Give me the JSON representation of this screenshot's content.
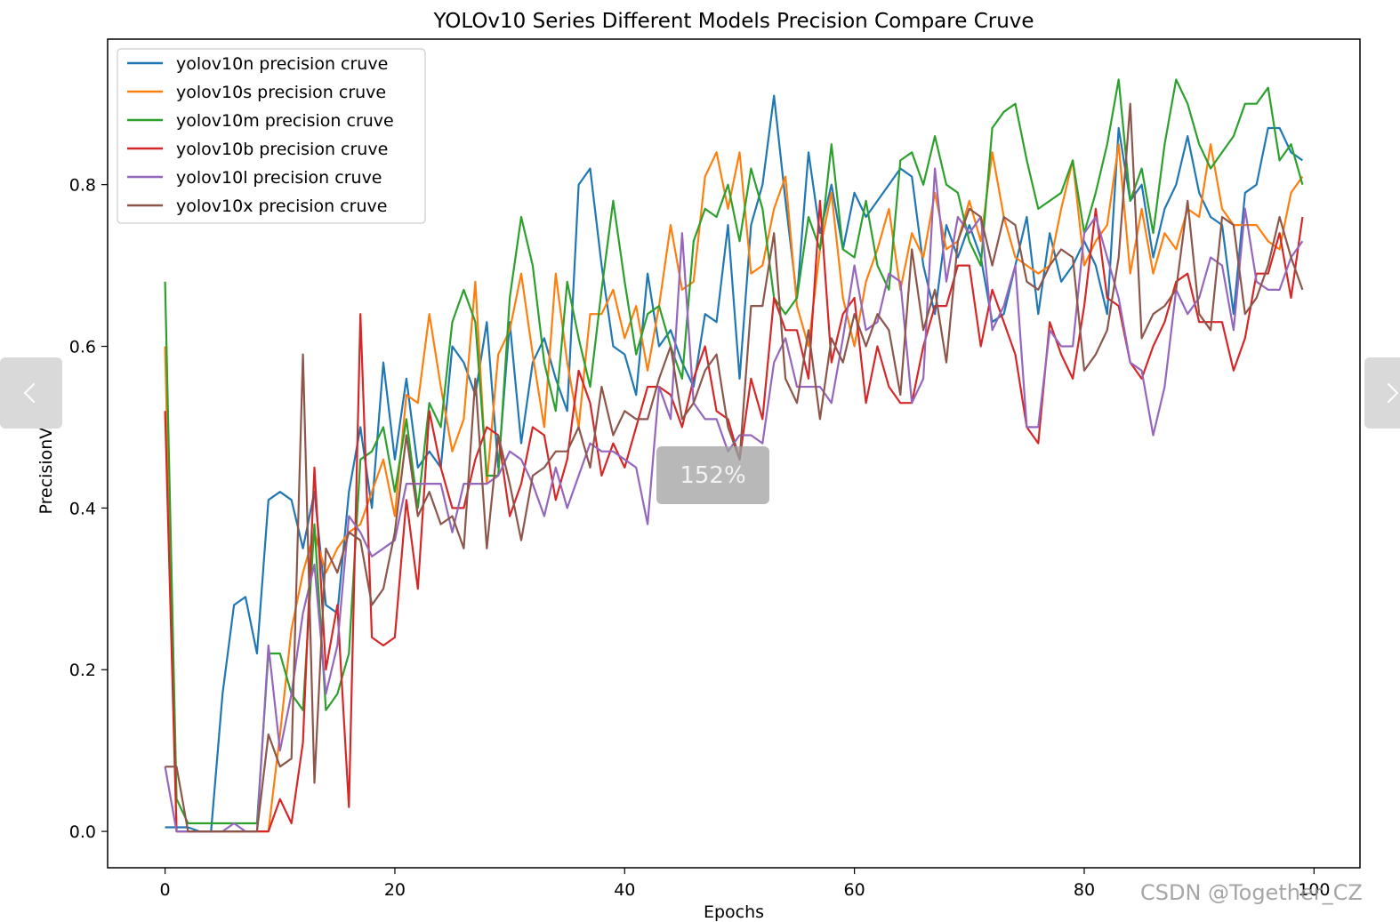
{
  "chart_data": {
    "type": "line",
    "title": "YOLOv10 Series Different Models Precision Compare Cruve",
    "xlabel": "Epochs",
    "ylabel": "PrecisionValue",
    "xlim": [
      -5,
      104
    ],
    "ylim": [
      -0.045,
      0.98
    ],
    "xticks": [
      0,
      20,
      40,
      60,
      80,
      100
    ],
    "yticks": [
      0.0,
      0.2,
      0.4,
      0.6,
      0.8
    ],
    "xtick_labels": [
      "0",
      "20",
      "40",
      "60",
      "80",
      "100"
    ],
    "ytick_labels": [
      "0.0",
      "0.2",
      "0.4",
      "0.6",
      "0.8"
    ],
    "grid": false,
    "legend_position": "top-left",
    "series": [
      {
        "name": "yolov10n precision cruve",
        "color": "#1f77b4",
        "values": [
          0.005,
          0.005,
          0.005,
          0.0,
          0.0,
          0.17,
          0.28,
          0.29,
          0.22,
          0.41,
          0.42,
          0.41,
          0.35,
          0.42,
          0.28,
          0.27,
          0.42,
          0.5,
          0.4,
          0.58,
          0.46,
          0.56,
          0.45,
          0.47,
          0.45,
          0.6,
          0.58,
          0.54,
          0.63,
          0.45,
          0.63,
          0.48,
          0.58,
          0.61,
          0.56,
          0.52,
          0.8,
          0.82,
          0.7,
          0.6,
          0.59,
          0.54,
          0.69,
          0.6,
          0.62,
          0.58,
          0.55,
          0.64,
          0.63,
          0.75,
          0.56,
          0.75,
          0.8,
          0.91,
          0.78,
          0.66,
          0.84,
          0.74,
          0.8,
          0.72,
          0.79,
          0.76,
          0.78,
          0.8,
          0.82,
          0.81,
          0.7,
          0.64,
          0.75,
          0.71,
          0.75,
          0.71,
          0.63,
          0.64,
          0.7,
          0.76,
          0.64,
          0.74,
          0.68,
          0.7,
          0.73,
          0.7,
          0.64,
          0.87,
          0.78,
          0.8,
          0.71,
          0.77,
          0.8,
          0.86,
          0.79,
          0.76,
          0.75,
          0.64,
          0.79,
          0.8,
          0.87,
          0.87,
          0.84,
          0.83
        ]
      },
      {
        "name": "yolov10s precision cruve",
        "color": "#ff7f0e",
        "values": [
          0.6,
          0.0,
          0.0,
          0.0,
          0.0,
          0.0,
          0.0,
          0.0,
          0.0,
          0.0,
          0.12,
          0.25,
          0.32,
          0.37,
          0.32,
          0.35,
          0.37,
          0.38,
          0.42,
          0.46,
          0.39,
          0.54,
          0.53,
          0.64,
          0.55,
          0.47,
          0.51,
          0.68,
          0.43,
          0.59,
          0.62,
          0.69,
          0.59,
          0.5,
          0.69,
          0.58,
          0.5,
          0.64,
          0.64,
          0.67,
          0.61,
          0.65,
          0.57,
          0.65,
          0.75,
          0.67,
          0.68,
          0.81,
          0.84,
          0.77,
          0.84,
          0.69,
          0.7,
          0.77,
          0.81,
          0.65,
          0.6,
          0.72,
          0.79,
          0.66,
          0.6,
          0.68,
          0.72,
          0.77,
          0.67,
          0.74,
          0.71,
          0.79,
          0.72,
          0.73,
          0.78,
          0.73,
          0.84,
          0.76,
          0.71,
          0.7,
          0.69,
          0.7,
          0.77,
          0.83,
          0.7,
          0.73,
          0.75,
          0.85,
          0.69,
          0.77,
          0.69,
          0.74,
          0.72,
          0.77,
          0.76,
          0.85,
          0.77,
          0.75,
          0.75,
          0.75,
          0.73,
          0.72,
          0.79,
          0.81
        ]
      },
      {
        "name": "yolov10m precision cruve",
        "color": "#2ca02c",
        "values": [
          0.68,
          0.04,
          0.01,
          0.01,
          0.01,
          0.01,
          0.01,
          0.01,
          0.01,
          0.22,
          0.22,
          0.17,
          0.15,
          0.38,
          0.15,
          0.17,
          0.22,
          0.46,
          0.47,
          0.5,
          0.42,
          0.51,
          0.4,
          0.53,
          0.5,
          0.63,
          0.67,
          0.63,
          0.44,
          0.44,
          0.66,
          0.76,
          0.7,
          0.58,
          0.52,
          0.68,
          0.61,
          0.55,
          0.67,
          0.78,
          0.68,
          0.59,
          0.64,
          0.65,
          0.6,
          0.56,
          0.73,
          0.77,
          0.76,
          0.8,
          0.73,
          0.82,
          0.77,
          0.66,
          0.64,
          0.66,
          0.76,
          0.72,
          0.85,
          0.72,
          0.71,
          0.78,
          0.7,
          0.67,
          0.83,
          0.84,
          0.8,
          0.86,
          0.8,
          0.79,
          0.73,
          0.7,
          0.87,
          0.89,
          0.9,
          0.83,
          0.77,
          0.78,
          0.79,
          0.83,
          0.74,
          0.79,
          0.85,
          0.93,
          0.78,
          0.82,
          0.74,
          0.85,
          0.93,
          0.9,
          0.85,
          0.82,
          0.84,
          0.86,
          0.9,
          0.9,
          0.92,
          0.83,
          0.85,
          0.8
        ]
      },
      {
        "name": "yolov10b precision cruve",
        "color": "#d62728",
        "values": [
          0.52,
          0.0,
          0.0,
          0.0,
          0.0,
          0.0,
          0.0,
          0.0,
          0.0,
          0.0,
          0.04,
          0.01,
          0.11,
          0.45,
          0.2,
          0.28,
          0.03,
          0.64,
          0.24,
          0.23,
          0.24,
          0.41,
          0.3,
          0.52,
          0.45,
          0.4,
          0.4,
          0.46,
          0.5,
          0.49,
          0.39,
          0.43,
          0.5,
          0.49,
          0.41,
          0.46,
          0.57,
          0.53,
          0.44,
          0.48,
          0.45,
          0.5,
          0.55,
          0.55,
          0.54,
          0.5,
          0.56,
          0.6,
          0.52,
          0.51,
          0.46,
          0.56,
          0.51,
          0.66,
          0.62,
          0.62,
          0.56,
          0.78,
          0.58,
          0.64,
          0.66,
          0.53,
          0.6,
          0.55,
          0.53,
          0.53,
          0.6,
          0.65,
          0.65,
          0.7,
          0.7,
          0.6,
          0.67,
          0.63,
          0.59,
          0.5,
          0.48,
          0.63,
          0.59,
          0.56,
          0.65,
          0.77,
          0.66,
          0.65,
          0.58,
          0.56,
          0.6,
          0.63,
          0.68,
          0.69,
          0.63,
          0.63,
          0.63,
          0.57,
          0.61,
          0.69,
          0.69,
          0.74,
          0.66,
          0.76
        ]
      },
      {
        "name": "yolov10l precision cruve",
        "color": "#9467bd",
        "values": [
          0.08,
          0.0,
          0.0,
          0.0,
          0.0,
          0.0,
          0.01,
          0.0,
          0.0,
          0.23,
          0.1,
          0.17,
          0.27,
          0.33,
          0.17,
          0.23,
          0.39,
          0.37,
          0.34,
          0.35,
          0.36,
          0.43,
          0.43,
          0.43,
          0.43,
          0.37,
          0.43,
          0.43,
          0.43,
          0.44,
          0.47,
          0.46,
          0.43,
          0.39,
          0.45,
          0.4,
          0.44,
          0.48,
          0.47,
          0.47,
          0.46,
          0.45,
          0.38,
          0.55,
          0.51,
          0.74,
          0.53,
          0.51,
          0.51,
          0.47,
          0.49,
          0.49,
          0.48,
          0.58,
          0.61,
          0.55,
          0.55,
          0.55,
          0.53,
          0.61,
          0.7,
          0.62,
          0.63,
          0.69,
          0.68,
          0.53,
          0.56,
          0.82,
          0.68,
          0.76,
          0.74,
          0.76,
          0.62,
          0.65,
          0.7,
          0.5,
          0.5,
          0.62,
          0.6,
          0.6,
          0.74,
          0.76,
          0.71,
          0.66,
          0.58,
          0.57,
          0.49,
          0.55,
          0.67,
          0.64,
          0.66,
          0.71,
          0.7,
          0.62,
          0.77,
          0.68,
          0.67,
          0.67,
          0.71,
          0.73
        ]
      },
      {
        "name": "yolov10x precision cruve",
        "color": "#8c564b",
        "values": [
          0.08,
          0.08,
          0.0,
          0.0,
          0.0,
          0.0,
          0.0,
          0.0,
          0.0,
          0.12,
          0.08,
          0.09,
          0.59,
          0.06,
          0.35,
          0.32,
          0.37,
          0.36,
          0.28,
          0.3,
          0.37,
          0.49,
          0.39,
          0.42,
          0.38,
          0.39,
          0.35,
          0.56,
          0.35,
          0.49,
          0.43,
          0.36,
          0.44,
          0.45,
          0.47,
          0.47,
          0.5,
          0.45,
          0.55,
          0.49,
          0.52,
          0.51,
          0.51,
          0.56,
          0.6,
          0.51,
          0.53,
          0.57,
          0.59,
          0.5,
          0.46,
          0.65,
          0.65,
          0.74,
          0.56,
          0.53,
          0.62,
          0.51,
          0.61,
          0.58,
          0.64,
          0.6,
          0.64,
          0.62,
          0.54,
          0.72,
          0.62,
          0.67,
          0.58,
          0.73,
          0.77,
          0.76,
          0.7,
          0.76,
          0.75,
          0.68,
          0.67,
          0.7,
          0.72,
          0.71,
          0.57,
          0.59,
          0.62,
          0.71,
          0.9,
          0.61,
          0.64,
          0.65,
          0.67,
          0.78,
          0.64,
          0.62,
          0.76,
          0.75,
          0.64,
          0.66,
          0.7,
          0.76,
          0.71,
          0.67
        ]
      }
    ]
  },
  "nav": {
    "prev_icon": "chevron-left-icon",
    "next_icon": "chevron-right-icon"
  },
  "zoom": {
    "label": "152%"
  },
  "watermark": {
    "text": "CSDN @Together_CZ"
  }
}
